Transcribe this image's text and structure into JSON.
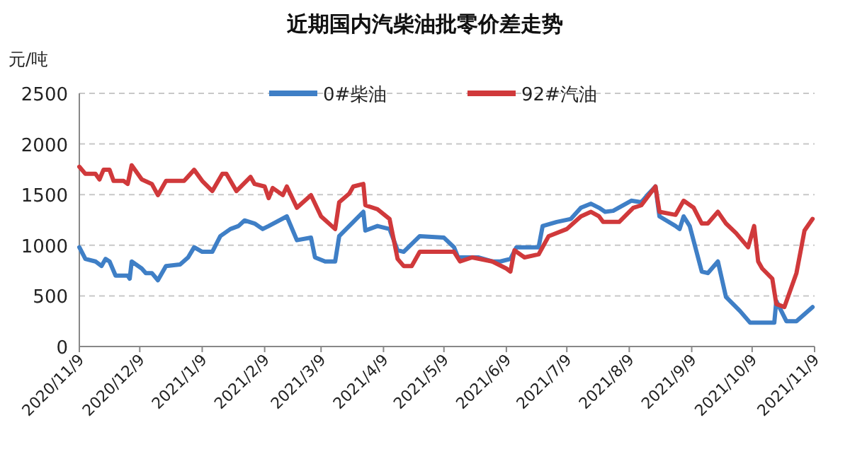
{
  "chart_data": {
    "type": "line",
    "title": "近期国内汽柴油批零价差走势",
    "ylabel": "元/吨",
    "xlim": [
      "2020-11-09",
      "2021-11-09"
    ],
    "xticks": [
      {
        "value": "2020-11-09",
        "label": "2020/11/9"
      },
      {
        "value": "2020-12-09",
        "label": "2020/12/9"
      },
      {
        "value": "2021-01-09",
        "label": "2021/1/9"
      },
      {
        "value": "2021-02-09",
        "label": "2021/2/9"
      },
      {
        "value": "2021-03-09",
        "label": "2021/3/9"
      },
      {
        "value": "2021-04-09",
        "label": "2021/4/9"
      },
      {
        "value": "2021-05-09",
        "label": "2021/5/9"
      },
      {
        "value": "2021-06-09",
        "label": "2021/6/9"
      },
      {
        "value": "2021-07-09",
        "label": "2021/7/9"
      },
      {
        "value": "2021-08-09",
        "label": "2021/8/9"
      },
      {
        "value": "2021-09-09",
        "label": "2021/9/9"
      },
      {
        "value": "2021-10-09",
        "label": "2021/10/9"
      },
      {
        "value": "2021-11-09",
        "label": "2021/11/9"
      }
    ],
    "ylim": [
      0,
      2500
    ],
    "yticks": [
      0,
      500,
      1000,
      1500,
      2000,
      2500
    ],
    "grid": "y",
    "legend": "top",
    "line_style": "solid",
    "marker": "none",
    "series": [
      {
        "name": "0#柴油",
        "color": "#3f7fc6",
        "x": [
          "2020-11-09",
          "2020-11-12",
          "2020-11-17",
          "2020-11-20",
          "2020-11-22",
          "2020-11-24",
          "2020-11-27",
          "2020-12-03",
          "2020-12-04",
          "2020-12-05",
          "2020-12-10",
          "2020-12-12",
          "2020-12-15",
          "2020-12-18",
          "2020-12-22",
          "2020-12-29",
          "2021-01-02",
          "2021-01-05",
          "2021-01-09",
          "2021-01-14",
          "2021-01-18",
          "2021-01-23",
          "2021-01-27",
          "2021-01-30",
          "2021-02-04",
          "2021-02-08",
          "2021-02-11",
          "2021-02-20",
          "2021-02-25",
          "2021-03-04",
          "2021-03-06",
          "2021-03-11",
          "2021-03-16",
          "2021-03-18",
          "2021-03-25",
          "2021-03-30",
          "2021-03-31",
          "2021-04-06",
          "2021-04-12",
          "2021-04-16",
          "2021-04-19",
          "2021-04-27",
          "2021-05-09",
          "2021-05-14",
          "2021-05-16",
          "2021-05-26",
          "2021-06-02",
          "2021-06-06",
          "2021-06-11",
          "2021-06-14",
          "2021-06-25",
          "2021-06-27",
          "2021-07-04",
          "2021-07-11",
          "2021-07-16",
          "2021-07-21",
          "2021-07-25",
          "2021-07-28",
          "2021-08-01",
          "2021-08-10",
          "2021-08-15",
          "2021-08-18",
          "2021-08-22",
          "2021-08-24",
          "2021-09-01",
          "2021-09-03",
          "2021-09-05",
          "2021-09-08",
          "2021-09-14",
          "2021-09-17",
          "2021-09-22",
          "2021-09-26",
          "2021-10-03",
          "2021-10-08",
          "2021-10-20",
          "2021-10-21",
          "2021-10-26",
          "2021-10-31",
          "2021-11-08"
        ],
        "values": [
          980,
          865,
          840,
          795,
          865,
          840,
          700,
          700,
          670,
          840,
          770,
          725,
          725,
          655,
          795,
          810,
          880,
          980,
          935,
          935,
          1090,
          1160,
          1190,
          1245,
          1215,
          1160,
          1190,
          1285,
          1050,
          1075,
          880,
          840,
          840,
          1090,
          1230,
          1330,
          1145,
          1190,
          1160,
          950,
          935,
          1090,
          1075,
          980,
          880,
          880,
          840,
          840,
          865,
          980,
          980,
          1190,
          1230,
          1260,
          1370,
          1410,
          1370,
          1330,
          1340,
          1440,
          1425,
          1495,
          1580,
          1285,
          1190,
          1160,
          1285,
          1190,
          740,
          725,
          840,
          490,
          350,
          235,
          235,
          450,
          250,
          250,
          390
        ]
      },
      {
        "name": "92#汽油",
        "color": "#d0393b",
        "x": [
          "2020-11-09",
          "2020-11-12",
          "2020-11-17",
          "2020-11-19",
          "2020-11-21",
          "2020-11-24",
          "2020-11-26",
          "2020-12-01",
          "2020-12-03",
          "2020-12-05",
          "2020-12-10",
          "2020-12-15",
          "2020-12-18",
          "2020-12-22",
          "2020-12-31",
          "2021-01-05",
          "2021-01-09",
          "2021-01-14",
          "2021-01-19",
          "2021-01-21",
          "2021-01-26",
          "2021-02-02",
          "2021-02-04",
          "2021-02-09",
          "2021-02-11",
          "2021-02-13",
          "2021-02-18",
          "2021-02-20",
          "2021-02-25",
          "2021-03-04",
          "2021-03-09",
          "2021-03-16",
          "2021-03-18",
          "2021-03-23",
          "2021-03-25",
          "2021-03-30",
          "2021-03-31",
          "2021-04-06",
          "2021-04-12",
          "2021-04-16",
          "2021-04-19",
          "2021-04-23",
          "2021-04-27",
          "2021-05-14",
          "2021-05-17",
          "2021-05-23",
          "2021-06-02",
          "2021-06-09",
          "2021-06-11",
          "2021-06-13",
          "2021-06-18",
          "2021-06-25",
          "2021-06-30",
          "2021-07-09",
          "2021-07-16",
          "2021-07-21",
          "2021-07-25",
          "2021-07-27",
          "2021-08-04",
          "2021-08-11",
          "2021-08-15",
          "2021-08-22",
          "2021-08-24",
          "2021-09-01",
          "2021-09-05",
          "2021-09-10",
          "2021-09-14",
          "2021-09-17",
          "2021-09-22",
          "2021-09-26",
          "2021-10-01",
          "2021-10-07",
          "2021-10-10",
          "2021-10-12",
          "2021-10-14",
          "2021-10-19",
          "2021-10-21",
          "2021-10-25",
          "2021-10-31",
          "2021-11-04",
          "2021-11-08"
        ],
        "values": [
          1775,
          1705,
          1705,
          1650,
          1745,
          1745,
          1635,
          1635,
          1605,
          1790,
          1650,
          1605,
          1495,
          1635,
          1635,
          1745,
          1635,
          1535,
          1705,
          1705,
          1535,
          1675,
          1605,
          1580,
          1465,
          1565,
          1495,
          1580,
          1370,
          1495,
          1285,
          1160,
          1425,
          1510,
          1580,
          1605,
          1395,
          1355,
          1260,
          865,
          795,
          795,
          935,
          935,
          840,
          880,
          840,
          770,
          740,
          950,
          880,
          910,
          1090,
          1160,
          1285,
          1330,
          1285,
          1230,
          1230,
          1370,
          1395,
          1580,
          1330,
          1300,
          1440,
          1370,
          1215,
          1215,
          1330,
          1215,
          1120,
          980,
          1190,
          840,
          770,
          670,
          420,
          390,
          725,
          1145,
          1260
        ]
      }
    ]
  }
}
